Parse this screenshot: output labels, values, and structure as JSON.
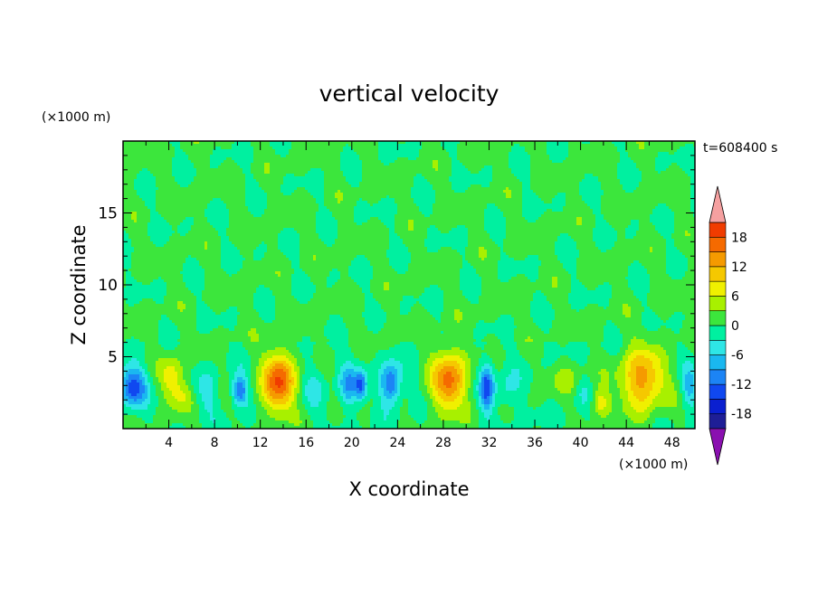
{
  "chart_data": {
    "type": "heatmap",
    "title": "vertical velocity",
    "time_label": "t=608400 s",
    "xlabel": "X coordinate",
    "ylabel": "Z coordinate",
    "x_unit": "(×1000 m)",
    "y_unit": "(×1000 m)",
    "xlim": [
      0,
      50
    ],
    "ylim": [
      0,
      20
    ],
    "x_ticks": [
      4,
      8,
      12,
      16,
      20,
      24,
      28,
      32,
      36,
      40,
      44,
      48
    ],
    "y_ticks": [
      5,
      10,
      15
    ],
    "colorbar": {
      "levels": [
        -21,
        -18,
        -15,
        -12,
        -9,
        -6,
        -3,
        0,
        3,
        6,
        9,
        12,
        15,
        18,
        21
      ],
      "tick_labels": [
        "18",
        "12",
        "6",
        "0",
        "-6",
        "-12",
        "-18"
      ],
      "tick_values": [
        18,
        12,
        6,
        0,
        -6,
        -12,
        -18
      ],
      "colors": [
        "#4a0f9e",
        "#1e1e96",
        "#0a1fd0",
        "#1048f0",
        "#1c84f5",
        "#1ab8f0",
        "#2ee6e6",
        "#00f0a0",
        "#3ce63c",
        "#a8f000",
        "#f0f000",
        "#f5c800",
        "#f59a00",
        "#f56a00",
        "#f03c00",
        "#e61414"
      ],
      "under_color": "#8a10b0",
      "over_color": "#f5a0a0"
    },
    "features": [
      {
        "x": 0.8,
        "z": 2.9,
        "w": -14,
        "sx": 1.2,
        "sz": 1.3
      },
      {
        "x": 4.3,
        "z": 3.5,
        "w": 8,
        "sx": 1.0,
        "sz": 1.6
      },
      {
        "x": 5.3,
        "z": 2.2,
        "w": 5,
        "sx": 0.9,
        "sz": 1.0
      },
      {
        "x": 7.3,
        "z": 2.4,
        "w": -4,
        "sx": 1.0,
        "sz": 1.5
      },
      {
        "x": 10.2,
        "z": 2.6,
        "w": -12,
        "sx": 0.7,
        "sz": 1.0
      },
      {
        "x": 13.6,
        "z": 3.2,
        "w": 18,
        "sx": 1.4,
        "sz": 2.1
      },
      {
        "x": 16.7,
        "z": 2.8,
        "w": -3,
        "sx": 1.1,
        "sz": 1.6
      },
      {
        "x": 19.7,
        "z": 3.0,
        "w": -9,
        "sx": 0.8,
        "sz": 1.4
      },
      {
        "x": 20.8,
        "z": 3.0,
        "w": -12,
        "sx": 0.5,
        "sz": 1.0
      },
      {
        "x": 23.4,
        "z": 3.1,
        "w": -13,
        "sx": 0.9,
        "sz": 1.4
      },
      {
        "x": 28.5,
        "z": 3.3,
        "w": 16,
        "sx": 1.5,
        "sz": 2.1
      },
      {
        "x": 31.8,
        "z": 2.9,
        "w": -13,
        "sx": 0.6,
        "sz": 1.6
      },
      {
        "x": 33.5,
        "z": 2.6,
        "w": -4,
        "sx": 1.2,
        "sz": 1.3
      },
      {
        "x": 38.8,
        "z": 3.6,
        "w": 4,
        "sx": 1.5,
        "sz": 1.2
      },
      {
        "x": 40.2,
        "z": 2.6,
        "w": -3,
        "sx": 0.8,
        "sz": 1.0
      },
      {
        "x": 41.7,
        "z": 1.8,
        "w": 8,
        "sx": 0.8,
        "sz": 1.0
      },
      {
        "x": 45.4,
        "z": 3.4,
        "w": 14,
        "sx": 1.9,
        "sz": 2.1
      },
      {
        "x": 49.5,
        "z": 2.9,
        "w": -7,
        "sx": 0.6,
        "sz": 1.3
      }
    ]
  }
}
